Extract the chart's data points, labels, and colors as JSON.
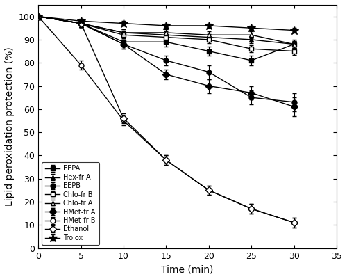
{
  "time": [
    0,
    5,
    10,
    15,
    20,
    25,
    30
  ],
  "series": [
    {
      "key": "EEPA",
      "values": [
        100,
        97,
        89,
        89,
        85,
        81,
        88
      ],
      "errors": [
        0,
        1.5,
        2.0,
        2.0,
        2.0,
        2.0,
        2.0
      ],
      "marker": "s",
      "filled": true,
      "label": "EEPA"
    },
    {
      "key": "Hex-fr A",
      "values": [
        100,
        97,
        93,
        92,
        91,
        90,
        88
      ],
      "errors": [
        0,
        1.5,
        1.5,
        1.5,
        1.5,
        1.5,
        1.5
      ],
      "marker": "^",
      "filled": true,
      "label": "Hex-fr A"
    },
    {
      "key": "EEPB",
      "values": [
        100,
        97,
        88,
        81,
        76,
        65,
        63
      ],
      "errors": [
        0,
        1.5,
        2.0,
        2.0,
        3.0,
        3.0,
        4.0
      ],
      "marker": "o",
      "filled": true,
      "label": "EEPB"
    },
    {
      "key": "Chlo-fr B",
      "values": [
        100,
        97,
        92,
        91,
        90,
        86,
        85
      ],
      "errors": [
        0,
        1.5,
        1.5,
        1.5,
        1.5,
        1.5,
        1.5
      ],
      "marker": "s",
      "filled": false,
      "label": "Chlo-fr B"
    },
    {
      "key": "Chlo-fr A",
      "values": [
        100,
        97,
        93,
        93,
        92,
        92,
        88
      ],
      "errors": [
        0,
        1.5,
        1.5,
        1.5,
        1.5,
        1.5,
        1.5
      ],
      "marker": "^",
      "filled": false,
      "label": "Chlo-fr A"
    },
    {
      "key": "HMet-fr A",
      "values": [
        100,
        97,
        88,
        75,
        70,
        67,
        61
      ],
      "errors": [
        0,
        1.5,
        2.0,
        2.0,
        3.0,
        3.0,
        4.0
      ],
      "marker": "D",
      "filled": true,
      "label": "HMet-fr A"
    },
    {
      "key": "HMet-fr B",
      "values": [
        100,
        79,
        55,
        38,
        25,
        17,
        11
      ],
      "errors": [
        0,
        2.0,
        2.0,
        2.0,
        2.0,
        2.0,
        2.0
      ],
      "marker": "o",
      "filled": false,
      "label": "HMet-fr B"
    },
    {
      "key": "Ethanol",
      "values": [
        100,
        97,
        56,
        38,
        25,
        17,
        11
      ],
      "errors": [
        0,
        1.5,
        2.0,
        2.0,
        2.0,
        2.0,
        2.0
      ],
      "marker": "D",
      "filled": false,
      "label": "Ethanol"
    },
    {
      "key": "Trolox",
      "values": [
        100,
        98,
        97,
        96,
        96,
        95,
        94
      ],
      "errors": [
        0,
        1.0,
        1.0,
        1.0,
        1.0,
        1.0,
        1.0
      ],
      "marker": "*",
      "filled": true,
      "label": "Trolox"
    }
  ],
  "xlabel": "Time (min)",
  "ylabel": "Lipid peroxidation protection (%)",
  "xlim": [
    0,
    35
  ],
  "ylim": [
    0,
    105
  ],
  "xticks": [
    0,
    5,
    10,
    15,
    20,
    25,
    30,
    35
  ],
  "yticks": [
    0,
    10,
    20,
    30,
    40,
    50,
    60,
    70,
    80,
    90,
    100
  ],
  "legend_fontsize": 7.0,
  "markersize": 5,
  "linewidth": 1.0,
  "capsize": 2,
  "elinewidth": 0.8
}
